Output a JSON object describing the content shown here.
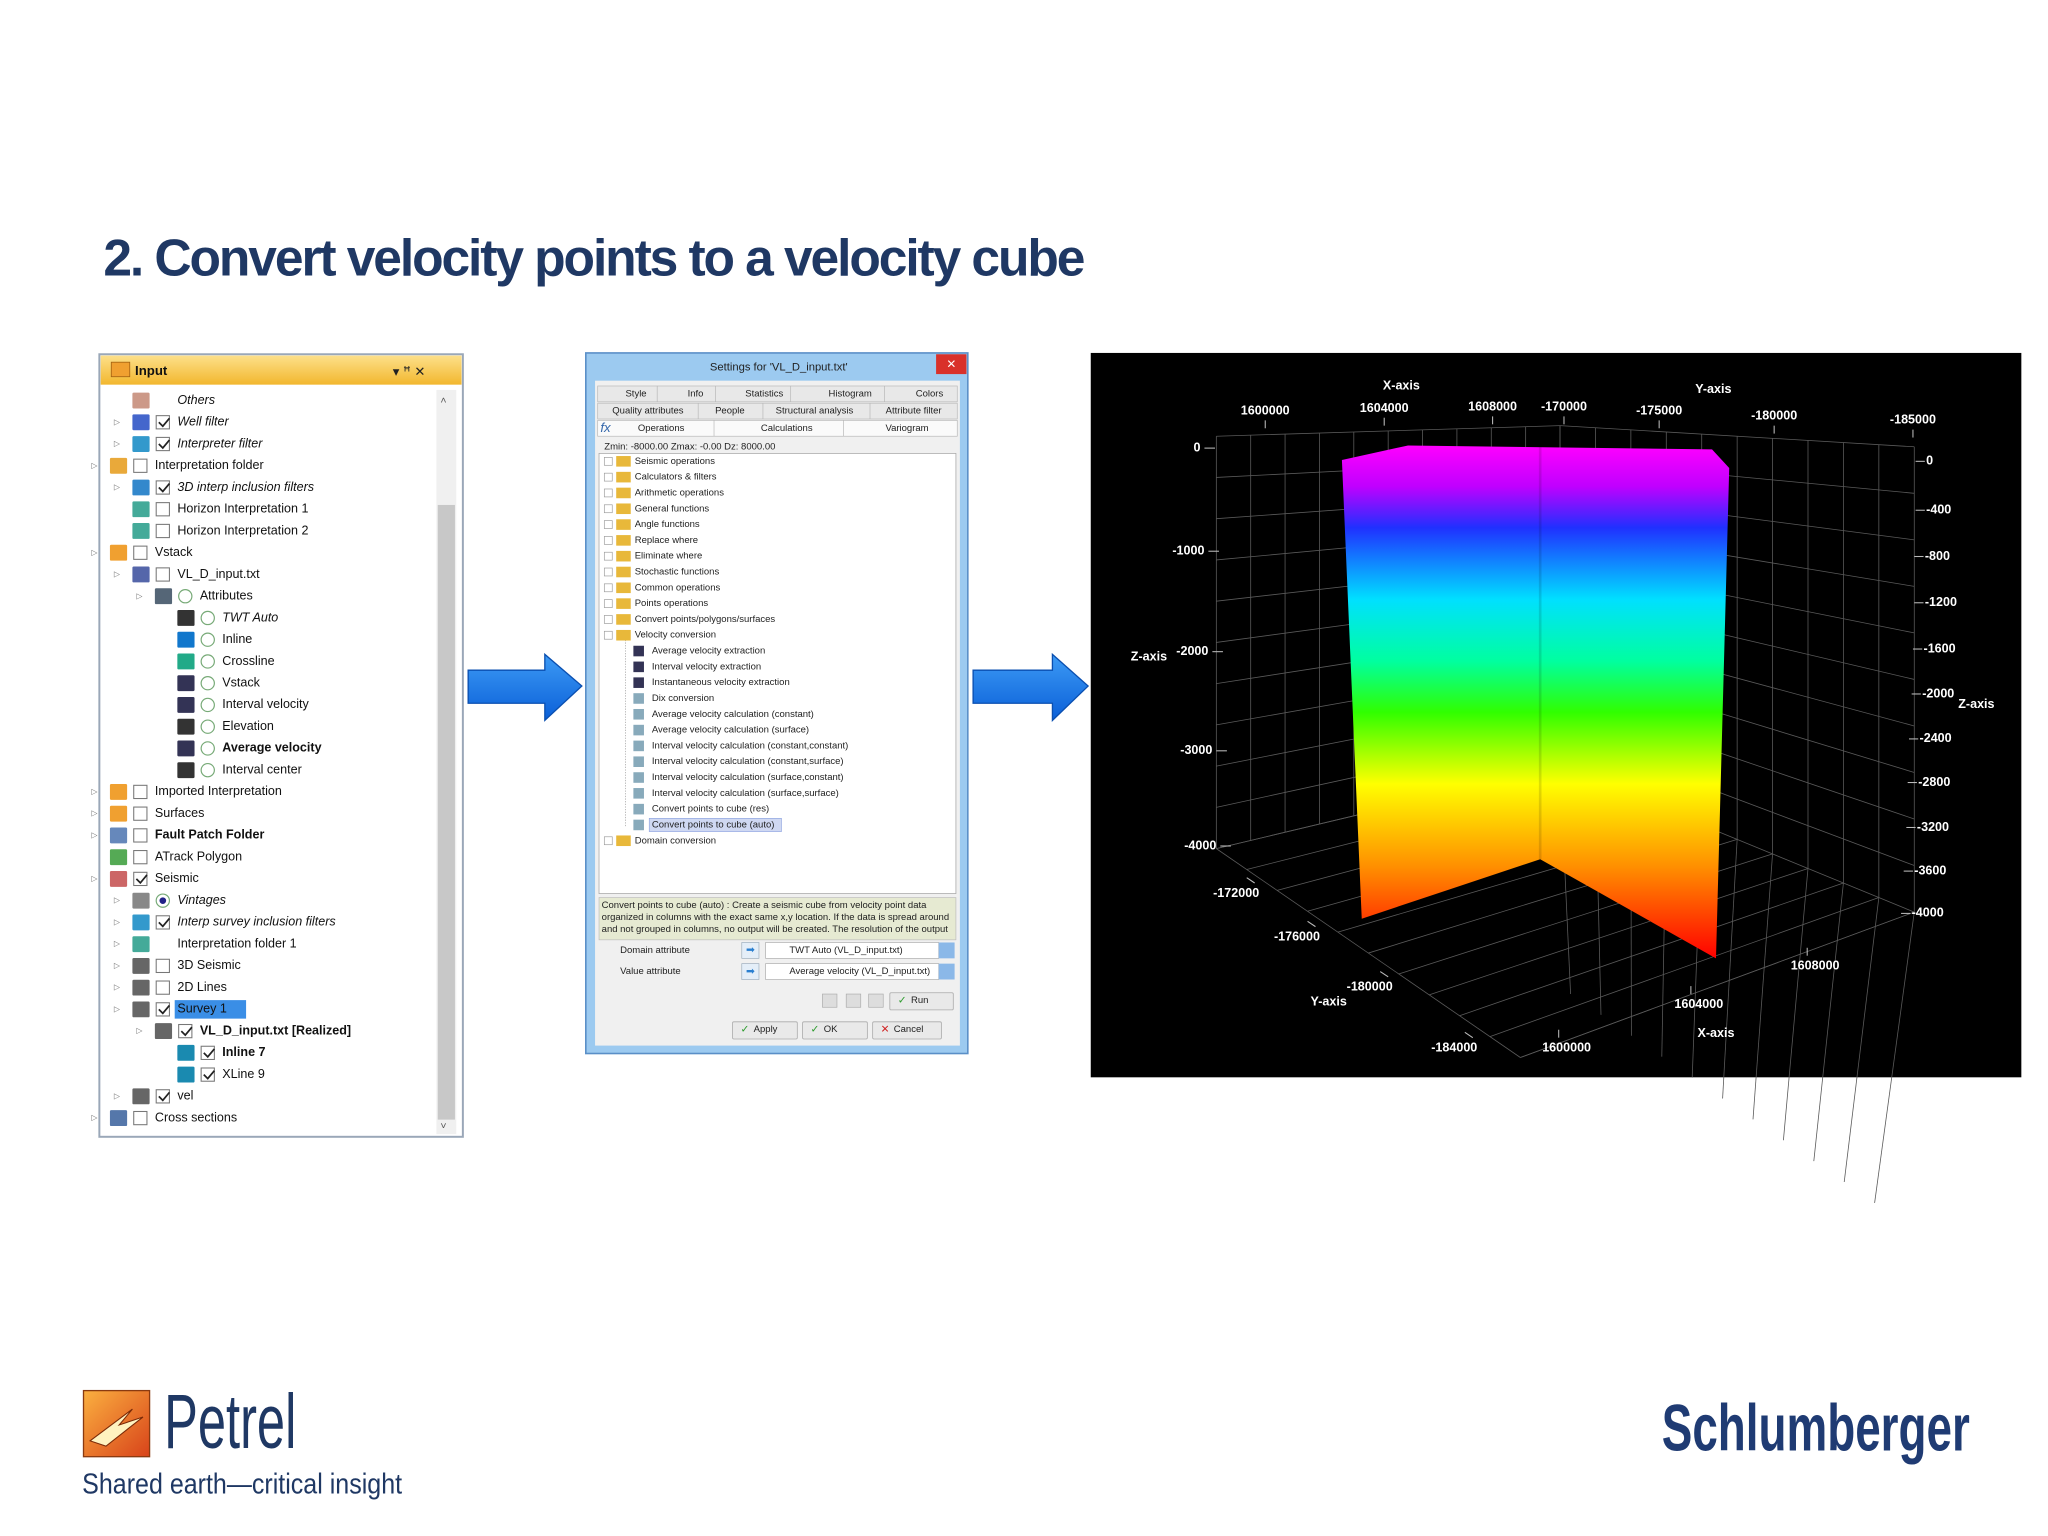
{
  "title": "2. Convert velocity points to a velocity cube",
  "input_panel": {
    "title": "Input",
    "items": [
      "Others",
      "Well filter",
      "Interpreter filter",
      "Interpretation folder",
      "3D interp inclusion filters",
      "Horizon Interpretation 1",
      "Horizon Interpretation 2",
      "Vstack",
      "VL_D_input.txt",
      "Attributes",
      "TWT Auto",
      "Inline",
      "Crossline",
      "Vstack",
      "Interval velocity",
      "Elevation",
      "Average velocity",
      "Interval center",
      "Imported Interpretation",
      "Surfaces",
      "Fault Patch Folder",
      "ATrack Polygon",
      "Seismic",
      "Vintages",
      "Interp survey inclusion filters",
      "Interpretation folder 1",
      "3D Seismic",
      "2D Lines",
      "Survey 1",
      "VL_D_input.txt [Realized]",
      "Inline 7",
      "XLine 9",
      "vel",
      "Cross sections"
    ]
  },
  "settings_dialog": {
    "title": "Settings for 'VL_D_input.txt'",
    "tabs": [
      [
        "Style",
        "Info",
        "Statistics",
        "Histogram",
        "Colors"
      ],
      [
        "Quality attributes",
        "People",
        "Structural analysis",
        "Attribute filter"
      ],
      [
        "Operations",
        "Calculations",
        "Variogram"
      ]
    ],
    "range_info": "Zmin: -8000.00   Zmax: -0.00   Dz: 8000.00",
    "operations": [
      "Seismic operations",
      "Calculators & filters",
      "Arithmetic operations",
      "General functions",
      "Angle functions",
      "Replace where",
      "Eliminate where",
      "Stochastic functions",
      "Common operations",
      "Points operations",
      "Convert points/polygons/surfaces",
      "Velocity conversion"
    ],
    "velocity_conversion": [
      "Average velocity extraction",
      "Interval velocity extraction",
      "Instantaneous velocity extraction",
      "Dix conversion",
      "Average velocity calculation (constant)",
      "Average velocity calculation (surface)",
      "Interval velocity calculation (constant,constant)",
      "Interval velocity calculation (constant,surface)",
      "Interval velocity calculation (surface,constant)",
      "Interval velocity calculation (surface,surface)",
      "Convert points to cube (res)",
      "Convert points to cube (auto)"
    ],
    "last_operation": "Domain conversion",
    "description_lines": [
      "Convert points to cube (auto) : Create a seismic cube from velocity point data",
      "organized in columns with the exact same x,y location. If the data is spread around",
      "and not grouped in columns, no output will be created. The resolution of the output"
    ],
    "fields": [
      {
        "label": "Domain attribute",
        "value": "TWT Auto (VL_D_input.txt)"
      },
      {
        "label": "Value attribute",
        "value": "Average velocity (VL_D_input.txt)"
      }
    ],
    "buttons": {
      "run": "Run",
      "apply": "Apply",
      "ok": "OK",
      "cancel": "Cancel"
    }
  },
  "plot": {
    "x_axis_label": "X-axis",
    "y_axis_label": "Y-axis",
    "z_axis_label": "Z-axis",
    "top_x_ticks": [
      1600000,
      1604000,
      1608000
    ],
    "top_y_ticks": [
      -170000,
      -175000,
      -180000,
      -185000
    ],
    "left_z_ticks": [
      0,
      -1000,
      -2000,
      -3000,
      -4000
    ],
    "right_z_ticks": [
      0,
      -400,
      -800,
      -1200,
      -1600,
      -2000,
      -2400,
      -2800,
      -3200,
      -3600,
      -4000
    ],
    "bottom_y_ticks": [
      -172000,
      -176000,
      -180000,
      -184000
    ],
    "bottom_x_ticks": [
      1600000,
      1604000,
      1608000
    ]
  },
  "footer": {
    "product": "Petrel",
    "tagline": "Shared earth—critical insight",
    "company": "Schlumberger"
  }
}
